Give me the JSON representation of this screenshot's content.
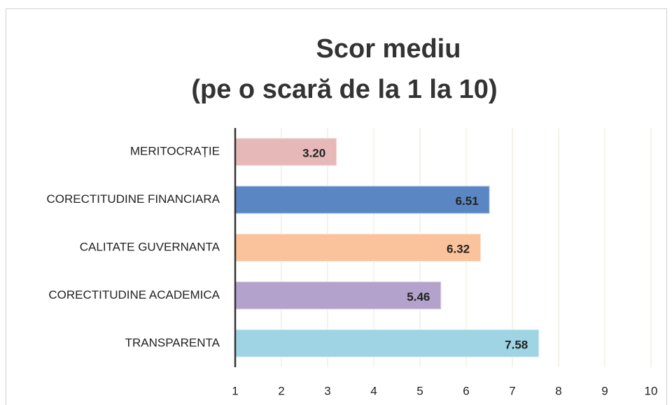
{
  "chart_data": {
    "type": "barh",
    "title": "Scor mediu",
    "subtitle": "(pe o scară de la 1 la 10)",
    "categories": [
      "MERITOCRAȚIE",
      "CORECTITUDINE FINANCIARA",
      "CALITATE GUVERNANTA",
      "CORECTITUDINE ACADEMICA",
      "TRANSPARENTA"
    ],
    "values": [
      3.2,
      6.51,
      6.32,
      5.46,
      7.58
    ],
    "value_labels": [
      "3.20",
      "6.51",
      "6.32",
      "5.46",
      "7.58"
    ],
    "colors": [
      "#e6b9b8",
      "#5a86c4",
      "#fac39b",
      "#b3a2cb",
      "#9ed4e3"
    ],
    "xlim": [
      1,
      10
    ],
    "xticks": [
      1,
      2,
      3,
      4,
      5,
      6,
      7,
      8,
      9,
      10
    ],
    "grid": true
  }
}
